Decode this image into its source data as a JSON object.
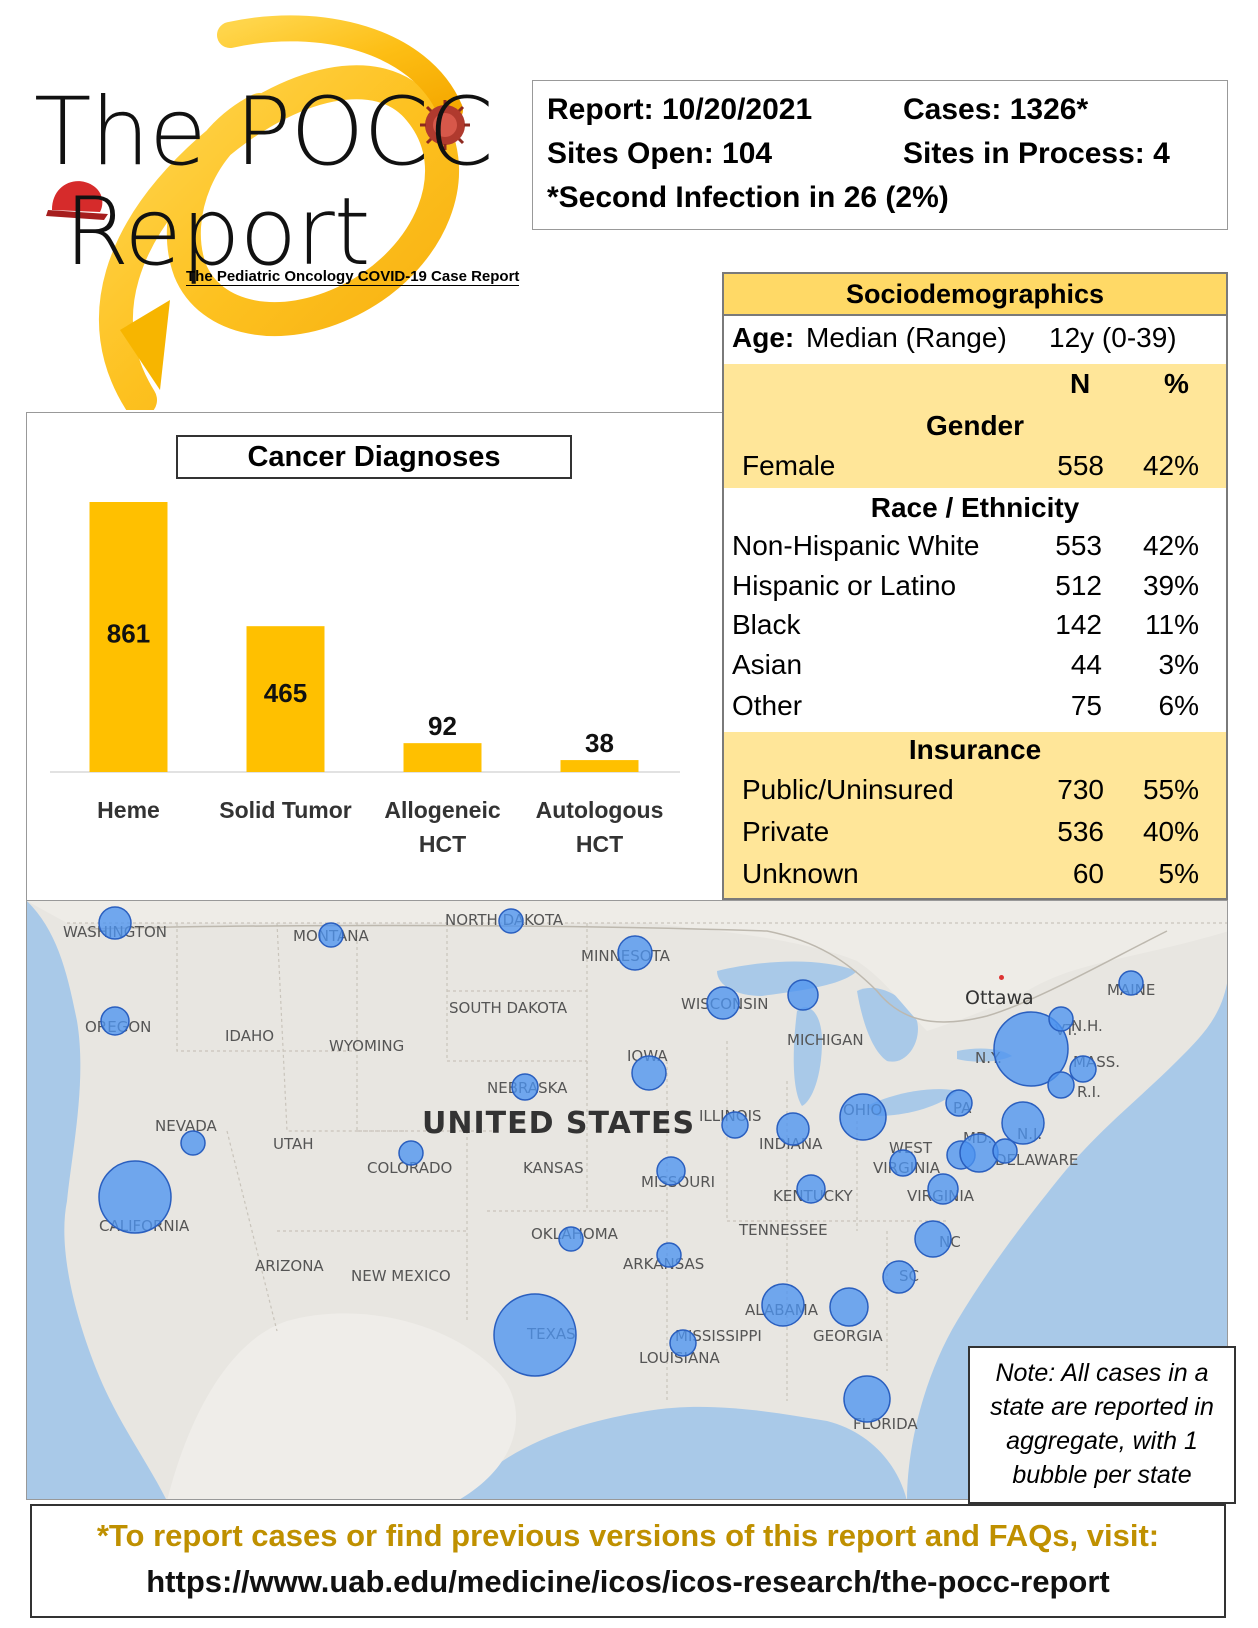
{
  "logo": {
    "line1": "The POCC",
    "line2": "Report",
    "subtitle": "The Pediatric Oncology COVID-19 Case Report"
  },
  "report": {
    "report_label": "Report: 10/20/2021",
    "cases_label": "Cases: 1326*",
    "sites_open_label": "Sites Open: 104",
    "sites_process_label": "Sites in Process: 4",
    "second_infection_label": "*Second Infection in 26 (2%)"
  },
  "socio": {
    "title": "Sociodemographics",
    "age_label": "Age:",
    "age_desc": "Median (Range)",
    "age_value": "12y (0-39)",
    "col_n": "N",
    "col_pct": "%",
    "gender_title": "Gender",
    "gender_rows": [
      {
        "label": "Female",
        "n": "558",
        "pct": "42%"
      }
    ],
    "race_title": "Race / Ethnicity",
    "race_rows": [
      {
        "label": "Non-Hispanic White",
        "n": "553",
        "pct": "42%"
      },
      {
        "label": "Hispanic or Latino",
        "n": "512",
        "pct": "39%"
      },
      {
        "label": "Black",
        "n": "142",
        "pct": "11%"
      },
      {
        "label": "Asian",
        "n": "44",
        "pct": "3%"
      },
      {
        "label": "Other",
        "n": "75",
        "pct": "6%"
      }
    ],
    "ins_title": "Insurance",
    "ins_rows": [
      {
        "label": "Public/Uninsured",
        "n": "730",
        "pct": "55%"
      },
      {
        "label": "Private",
        "n": "536",
        "pct": "40%"
      },
      {
        "label": "Unknown",
        "n": "60",
        "pct": "5%"
      }
    ]
  },
  "chart_data": {
    "type": "bar",
    "title": "Cancer Diagnoses",
    "categories": [
      "Heme",
      "Solid Tumor",
      "Allogeneic HCT",
      "Autologous HCT"
    ],
    "category_lines": [
      [
        "Heme"
      ],
      [
        "Solid Tumor"
      ],
      [
        "Allogeneic",
        "HCT"
      ],
      [
        "Autologous",
        "HCT"
      ]
    ],
    "values": [
      861,
      465,
      92,
      38
    ],
    "value_labels": [
      "861",
      "465",
      "92",
      "38"
    ],
    "ylim": [
      0,
      861
    ],
    "color": "#FFC000",
    "xlabel": "",
    "ylabel": ""
  },
  "map": {
    "country_label": "UNITED STATES",
    "city_label": "Ottawa",
    "states": [
      {
        "name": "WASHINGTON"
      },
      {
        "name": "OREGON"
      },
      {
        "name": "CALIFORNIA"
      },
      {
        "name": "NEVADA"
      },
      {
        "name": "IDAHO"
      },
      {
        "name": "MONTANA"
      },
      {
        "name": "WYOMING"
      },
      {
        "name": "UTAH"
      },
      {
        "name": "ARIZONA"
      },
      {
        "name": "COLORADO"
      },
      {
        "name": "NEW MEXICO"
      },
      {
        "name": "NORTH DAKOTA"
      },
      {
        "name": "SOUTH DAKOTA"
      },
      {
        "name": "NEBRASKA"
      },
      {
        "name": "KANSAS"
      },
      {
        "name": "OKLAHOMA"
      },
      {
        "name": "TEXAS"
      },
      {
        "name": "MINNESOTA"
      },
      {
        "name": "IOWA"
      },
      {
        "name": "MISSOURI"
      },
      {
        "name": "ARKANSAS"
      },
      {
        "name": "LOUISIANA"
      },
      {
        "name": "WISCONSIN"
      },
      {
        "name": "ILLINOIS"
      },
      {
        "name": "MICHIGAN"
      },
      {
        "name": "INDIANA"
      },
      {
        "name": "OHIO"
      },
      {
        "name": "KENTUCKY"
      },
      {
        "name": "TENNESSEE"
      },
      {
        "name": "MISSISSIPPI"
      },
      {
        "name": "ALABAMA"
      },
      {
        "name": "GEORGIA"
      },
      {
        "name": "FLORIDA"
      },
      {
        "name": "SC"
      },
      {
        "name": "NC"
      },
      {
        "name": "VIRGINIA"
      },
      {
        "name": "WEST"
      },
      {
        "name": "VIRGINIA"
      },
      {
        "name": "PA"
      },
      {
        "name": "N.Y."
      },
      {
        "name": "N.J."
      },
      {
        "name": "MD."
      },
      {
        "name": "DELAWARE"
      },
      {
        "name": "VT."
      },
      {
        "name": "N.H."
      },
      {
        "name": "MASS."
      },
      {
        "name": "R.I."
      },
      {
        "name": "MAINE"
      }
    ]
  },
  "note": {
    "text": "Note: All cases in a state are reported in aggregate, with 1 bubble per state"
  },
  "footer": {
    "line1": "*To report cases or find previous versions of this report and FAQs, visit:",
    "line2": "https://www.uab.edu/medicine/icos/icos-research/the-pocc-report"
  },
  "colors": {
    "gold": "#FFC000",
    "socio_header": "#FFD966",
    "socio_band": "#FFE699",
    "bubble": "#4D94F0",
    "footer_gold": "#BF9000"
  }
}
